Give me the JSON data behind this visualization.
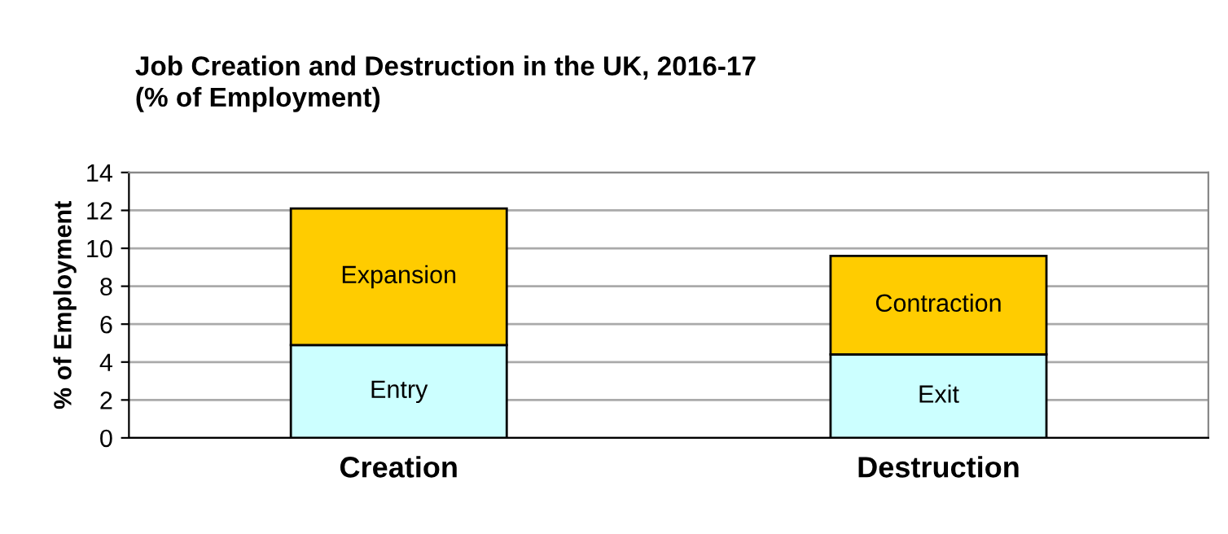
{
  "chart_data": {
    "type": "bar",
    "title": "Job Creation and Destruction in the UK, 2016-17\n(% of Employment)",
    "ylabel": "% of Employment",
    "categories": [
      "Creation",
      "Destruction"
    ],
    "stacked": true,
    "series": [
      {
        "color": "#ccffff",
        "values": [
          4.9,
          4.4
        ]
      },
      {
        "color": "#ffcc00",
        "values": [
          7.2,
          5.2
        ]
      }
    ],
    "annotations": [
      "Entry",
      "Expansion",
      "Exit",
      "Contraction"
    ],
    "ylim": [
      0,
      14
    ],
    "yticks": [
      0,
      2,
      4,
      6,
      8,
      10,
      12,
      14
    ],
    "grid": "y"
  }
}
